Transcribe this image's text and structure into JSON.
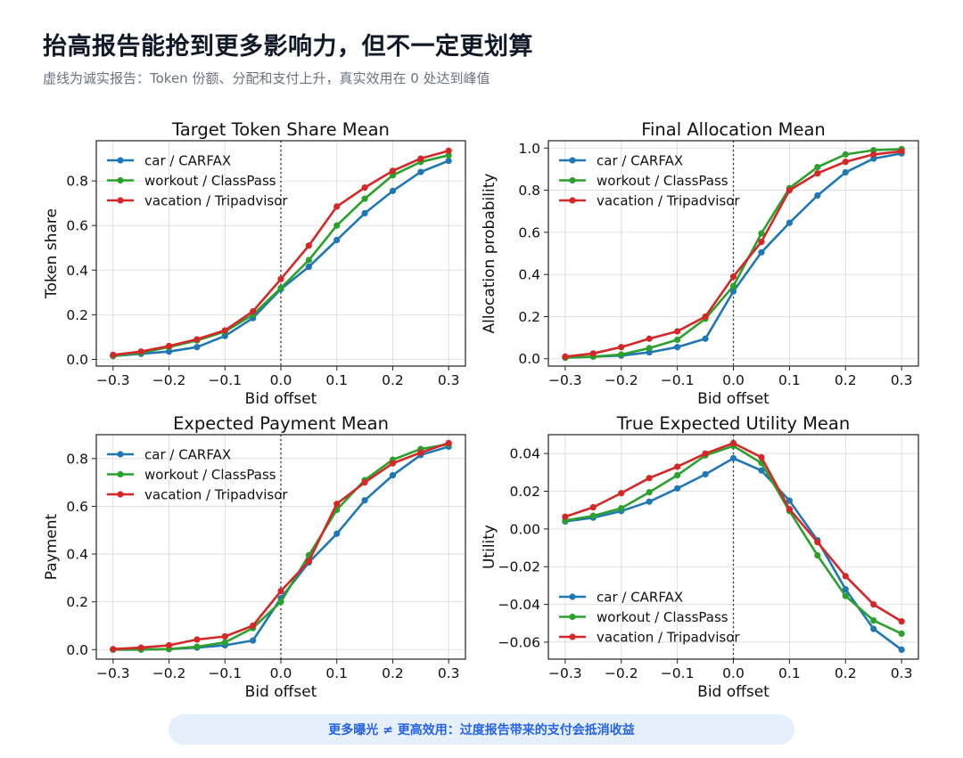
{
  "header": {
    "title": "抬高报告能抢到更多影响力，但不一定更划算",
    "subtitle": "虚线为诚实报告：Token 份额、分配和支付上升，真实效用在 0 处达到峰值"
  },
  "footer": {
    "note": "更多曝光 ≠ 更高效用：过度报告带来的支付会抵消收益"
  },
  "colors": {
    "car / CARFAX": "#1f77b4",
    "workout / ClassPass": "#2ca02c",
    "vacation / Tripadvisor": "#d62728"
  },
  "chart_data": [
    {
      "type": "line",
      "title": "Target Token Share Mean",
      "xlabel": "Bid offset",
      "ylabel": "Token share",
      "x": [
        -0.3,
        -0.25,
        -0.2,
        -0.15,
        -0.1,
        -0.05,
        0.0,
        0.05,
        0.1,
        0.15,
        0.2,
        0.25,
        0.3
      ],
      "xlim": [
        -0.33,
        0.33
      ],
      "ylim": [
        -0.03,
        0.98
      ],
      "xticks": [
        -0.3,
        -0.2,
        -0.1,
        0.0,
        0.1,
        0.2,
        0.3
      ],
      "xtick_labels": [
        "−0.3",
        "−0.2",
        "−0.1",
        "0.0",
        "0.1",
        "0.2",
        "0.3"
      ],
      "yticks": [
        0.0,
        0.2,
        0.4,
        0.6,
        0.8
      ],
      "ytick_labels": [
        "0.0",
        "0.2",
        "0.4",
        "0.6",
        "0.8"
      ],
      "grid": true,
      "legend": "upper-left",
      "honest_line_x": 0.0,
      "series": [
        {
          "name": "car / CARFAX",
          "values": [
            0.015,
            0.025,
            0.035,
            0.055,
            0.105,
            0.185,
            0.315,
            0.415,
            0.535,
            0.655,
            0.755,
            0.84,
            0.89
          ]
        },
        {
          "name": "workout / ClassPass",
          "values": [
            0.015,
            0.03,
            0.055,
            0.085,
            0.125,
            0.2,
            0.32,
            0.445,
            0.6,
            0.72,
            0.825,
            0.885,
            0.915
          ]
        },
        {
          "name": "vacation / Tripadvisor",
          "values": [
            0.02,
            0.035,
            0.06,
            0.09,
            0.13,
            0.215,
            0.36,
            0.51,
            0.685,
            0.77,
            0.845,
            0.9,
            0.935
          ]
        }
      ]
    },
    {
      "type": "line",
      "title": "Final Allocation Mean",
      "xlabel": "Bid offset",
      "ylabel": "Allocation probability",
      "x": [
        -0.3,
        -0.25,
        -0.2,
        -0.15,
        -0.1,
        -0.05,
        0.0,
        0.05,
        0.1,
        0.15,
        0.2,
        0.25,
        0.3
      ],
      "xlim": [
        -0.33,
        0.33
      ],
      "ylim": [
        -0.035,
        1.035
      ],
      "xticks": [
        -0.3,
        -0.2,
        -0.1,
        0.0,
        0.1,
        0.2,
        0.3
      ],
      "xtick_labels": [
        "−0.3",
        "−0.2",
        "−0.1",
        "0.0",
        "0.1",
        "0.2",
        "0.3"
      ],
      "yticks": [
        0.0,
        0.2,
        0.4,
        0.6,
        0.8,
        1.0
      ],
      "ytick_labels": [
        "0.0",
        "0.2",
        "0.4",
        "0.6",
        "0.8",
        "1.0"
      ],
      "grid": true,
      "legend": "upper-left",
      "honest_line_x": 0.0,
      "series": [
        {
          "name": "car / CARFAX",
          "values": [
            0.005,
            0.01,
            0.015,
            0.03,
            0.055,
            0.095,
            0.32,
            0.505,
            0.645,
            0.775,
            0.885,
            0.95,
            0.975
          ]
        },
        {
          "name": "workout / ClassPass",
          "values": [
            0.005,
            0.01,
            0.02,
            0.05,
            0.09,
            0.19,
            0.345,
            0.595,
            0.81,
            0.91,
            0.97,
            0.99,
            0.995
          ]
        },
        {
          "name": "vacation / Tripadvisor",
          "values": [
            0.01,
            0.025,
            0.055,
            0.095,
            0.13,
            0.2,
            0.39,
            0.555,
            0.8,
            0.88,
            0.935,
            0.97,
            0.985
          ]
        }
      ]
    },
    {
      "type": "line",
      "title": "Expected Payment Mean",
      "xlabel": "Bid offset",
      "ylabel": "Payment",
      "x": [
        -0.3,
        -0.25,
        -0.2,
        -0.15,
        -0.1,
        -0.05,
        0.0,
        0.05,
        0.1,
        0.15,
        0.2,
        0.25,
        0.3
      ],
      "xlim": [
        -0.33,
        0.33
      ],
      "ylim": [
        -0.04,
        0.9
      ],
      "xticks": [
        -0.3,
        -0.2,
        -0.1,
        0.0,
        0.1,
        0.2,
        0.3
      ],
      "xtick_labels": [
        "−0.3",
        "−0.2",
        "−0.1",
        "0.0",
        "0.1",
        "0.2",
        "0.3"
      ],
      "yticks": [
        0.0,
        0.2,
        0.4,
        0.6,
        0.8
      ],
      "ytick_labels": [
        "0.0",
        "0.2",
        "0.4",
        "0.6",
        "0.8"
      ],
      "grid": true,
      "legend": "upper-left",
      "honest_line_x": 0.0,
      "series": [
        {
          "name": "car / CARFAX",
          "values": [
            0.0,
            0.0,
            0.002,
            0.008,
            0.018,
            0.038,
            0.215,
            0.365,
            0.485,
            0.625,
            0.73,
            0.815,
            0.85
          ]
        },
        {
          "name": "workout / ClassPass",
          "values": [
            0.0,
            0.0,
            0.002,
            0.012,
            0.03,
            0.09,
            0.2,
            0.395,
            0.585,
            0.71,
            0.795,
            0.84,
            0.86
          ]
        },
        {
          "name": "vacation / Tripadvisor",
          "values": [
            0.002,
            0.008,
            0.018,
            0.042,
            0.055,
            0.1,
            0.245,
            0.37,
            0.61,
            0.7,
            0.78,
            0.825,
            0.865
          ]
        }
      ]
    },
    {
      "type": "line",
      "title": "True Expected Utility Mean",
      "xlabel": "Bid offset",
      "ylabel": "Utility",
      "x": [
        -0.3,
        -0.25,
        -0.2,
        -0.15,
        -0.1,
        -0.05,
        0.0,
        0.05,
        0.1,
        0.15,
        0.2,
        0.25,
        0.3
      ],
      "xlim": [
        -0.33,
        0.33
      ],
      "ylim": [
        -0.069,
        0.05
      ],
      "xticks": [
        -0.3,
        -0.2,
        -0.1,
        0.0,
        0.1,
        0.2,
        0.3
      ],
      "xtick_labels": [
        "−0.3",
        "−0.2",
        "−0.1",
        "0.0",
        "0.1",
        "0.2",
        "0.3"
      ],
      "yticks": [
        -0.06,
        -0.04,
        -0.02,
        0.0,
        0.02,
        0.04
      ],
      "ytick_labels": [
        "−0.06",
        "−0.04",
        "−0.02",
        "0.00",
        "0.02",
        "0.04"
      ],
      "grid": true,
      "legend": "lower-left",
      "honest_line_x": 0.0,
      "series": [
        {
          "name": "car / CARFAX",
          "values": [
            0.004,
            0.006,
            0.0095,
            0.0145,
            0.0215,
            0.029,
            0.0375,
            0.031,
            0.015,
            -0.006,
            -0.032,
            -0.053,
            -0.064
          ]
        },
        {
          "name": "workout / ClassPass",
          "values": [
            0.0045,
            0.007,
            0.011,
            0.0195,
            0.0285,
            0.039,
            0.044,
            0.035,
            0.0095,
            -0.014,
            -0.0355,
            -0.0485,
            -0.0555
          ]
        },
        {
          "name": "vacation / Tripadvisor",
          "values": [
            0.0065,
            0.0115,
            0.019,
            0.027,
            0.033,
            0.04,
            0.0455,
            0.038,
            0.0105,
            -0.007,
            -0.025,
            -0.04,
            -0.049
          ]
        }
      ]
    }
  ]
}
